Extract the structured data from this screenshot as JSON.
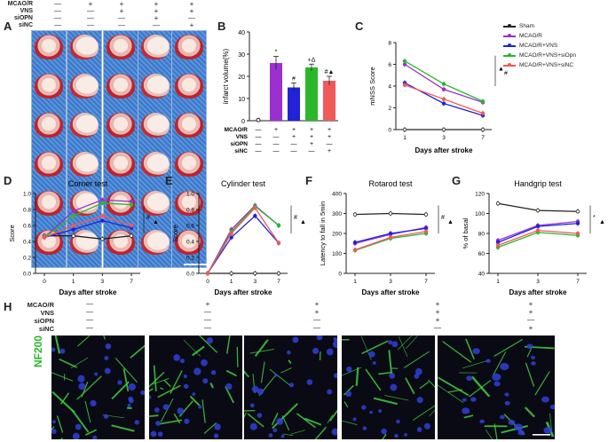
{
  "panels": {
    "A": "A",
    "B": "B",
    "C": "C",
    "D": "D",
    "E": "E",
    "F": "F",
    "G": "G",
    "H": "H"
  },
  "conditions": {
    "labels": [
      "MCAO/R",
      "VNS",
      "siOPN",
      "siNC"
    ],
    "A_signs": [
      [
        "—",
        "+",
        "+",
        "+",
        "+"
      ],
      [
        "—",
        "—",
        "+",
        "+",
        "+"
      ],
      [
        "—",
        "—",
        "—",
        "+",
        "—"
      ],
      [
        "—",
        "—",
        "—",
        "—",
        "+"
      ]
    ],
    "H_signs": [
      [
        "—",
        "+",
        "+",
        "+",
        "+"
      ],
      [
        "—",
        "—",
        "+",
        "+",
        "+"
      ],
      [
        "—",
        "—",
        "—",
        "+",
        "—"
      ],
      [
        "—",
        "—",
        "—",
        "—",
        "+"
      ]
    ]
  },
  "legend": [
    "Sham",
    "MCAO/R",
    "MCAO/R+VNS",
    "MCAO/R+VNS+siOpn",
    "MCAO/R+VNS+siNC"
  ],
  "colors": {
    "sham": "#222222",
    "mcao": "#9b2fd0",
    "vns": "#2222d8",
    "siopn": "#2ab82a",
    "sinc": "#f05a5a"
  },
  "nf200_label": "NF200",
  "chart_data": [
    {
      "id": "B",
      "type": "bar",
      "ylabel": "infarct volume(%)",
      "ylim": [
        0,
        40
      ],
      "yticks": [
        "0",
        "10",
        "20",
        "30",
        "40"
      ],
      "categories": [
        "Sham",
        "MCAO/R",
        "MCAO/R+VNS",
        "MCAO/R+VNS+siOPN",
        "MCAO/R+VNS+siNC"
      ],
      "values": [
        0.5,
        26,
        15,
        24,
        18
      ],
      "errors": [
        0.5,
        3,
        2,
        1.5,
        2
      ],
      "annotations": [
        "",
        "*",
        "#",
        "+Δ",
        "#▲"
      ],
      "xsigns_labels": [
        "MCAO/R",
        "VNS",
        "siOPN",
        "siNC"
      ],
      "xsigns": [
        [
          "—",
          "+",
          "+",
          "+",
          "+"
        ],
        [
          "—",
          "—",
          "+",
          "+",
          "+"
        ],
        [
          "—",
          "—",
          "—",
          "+",
          "—"
        ],
        [
          "—",
          "—",
          "—",
          "—",
          "+"
        ]
      ]
    },
    {
      "id": "C",
      "type": "line",
      "xlabel": "Days after stroke",
      "ylabel": "mNSS Score",
      "x": [
        "1",
        "3",
        "7"
      ],
      "ylim": [
        0,
        8
      ],
      "yticks": [
        "0",
        "2",
        "4",
        "6",
        "8"
      ],
      "series": [
        {
          "name": "Sham",
          "values": [
            0,
            0,
            0
          ]
        },
        {
          "name": "MCAO/R",
          "values": [
            6,
            3.7,
            2.5
          ]
        },
        {
          "name": "MCAO/R+VNS",
          "values": [
            4.3,
            2.4,
            1.3
          ]
        },
        {
          "name": "MCAO/R+VNS+siOpn",
          "values": [
            6.3,
            4.2,
            2.6
          ]
        },
        {
          "name": "MCAO/R+VNS+siNC",
          "values": [
            4.1,
            2.8,
            1.5
          ]
        }
      ],
      "sig": [
        "▲",
        "#"
      ]
    },
    {
      "id": "D",
      "type": "line",
      "title": "Corner test",
      "xlabel": "Days after stroke",
      "ylabel": "Score",
      "x": [
        "0",
        "1",
        "3",
        "7"
      ],
      "ylim": [
        0,
        1.0
      ],
      "yticks": [
        "0.0",
        "0.2",
        "0.4",
        "0.6",
        "0.8",
        "1.0"
      ],
      "series": [
        {
          "name": "Sham",
          "values": [
            0.47,
            0.47,
            0.43,
            0.47
          ]
        },
        {
          "name": "MCAO/R",
          "values": [
            0.45,
            0.78,
            0.92,
            0.9
          ]
        },
        {
          "name": "MCAO/R+VNS",
          "values": [
            0.45,
            0.55,
            0.66,
            0.57
          ]
        },
        {
          "name": "MCAO/R+VNS+siOpn",
          "values": [
            0.45,
            0.72,
            0.88,
            0.86
          ]
        },
        {
          "name": "MCAO/R+VNS+siNC",
          "values": [
            0.45,
            0.6,
            0.72,
            0.6
          ]
        }
      ],
      "sig": [
        "#",
        "▲"
      ]
    },
    {
      "id": "E",
      "type": "line",
      "title": "Cylinder test",
      "xlabel": "Days after stroke",
      "ylabel": "Score",
      "x": [
        "0",
        "1",
        "3",
        "7"
      ],
      "ylim": [
        0,
        1.0
      ],
      "yticks": [
        "0.0",
        "0.2",
        "0.4",
        "0.6",
        "0.8",
        "1.0"
      ],
      "series": [
        {
          "name": "Sham",
          "values": [
            0,
            0,
            0,
            0
          ]
        },
        {
          "name": "MCAO/R",
          "values": [
            0,
            0.55,
            0.85,
            0.6
          ]
        },
        {
          "name": "MCAO/R+VNS",
          "values": [
            0,
            0.45,
            0.72,
            0.38
          ]
        },
        {
          "name": "MCAO/R+VNS+siOpn",
          "values": [
            0,
            0.52,
            0.84,
            0.6
          ]
        },
        {
          "name": "MCAO/R+VNS+siNC",
          "values": [
            0,
            0.5,
            0.82,
            0.38
          ]
        }
      ],
      "sig": [
        "#",
        "▲"
      ]
    },
    {
      "id": "F",
      "type": "line",
      "title": "Rotarod test",
      "xlabel": "Days after stroke",
      "ylabel": "Latency to fall in 5min",
      "x": [
        "1",
        "3",
        "7"
      ],
      "ylim": [
        0,
        400
      ],
      "yticks": [
        "0",
        "100",
        "200",
        "300",
        "400"
      ],
      "series": [
        {
          "name": "Sham",
          "values": [
            295,
            300,
            295
          ]
        },
        {
          "name": "MCAO/R",
          "values": [
            150,
            195,
            230
          ]
        },
        {
          "name": "MCAO/R+VNS",
          "values": [
            155,
            200,
            225
          ]
        },
        {
          "name": "MCAO/R+VNS+siOpn",
          "values": [
            115,
            175,
            200
          ]
        },
        {
          "name": "MCAO/R+VNS+siNC",
          "values": [
            118,
            180,
            210
          ]
        }
      ],
      "sig": [
        "#",
        "▲"
      ]
    },
    {
      "id": "G",
      "type": "line",
      "title": "Handgrip test",
      "xlabel": "Days after stroke",
      "ylabel": "% of basal",
      "x": [
        "1",
        "3",
        "7"
      ],
      "ylim": [
        40,
        120
      ],
      "yticks": [
        "40",
        "60",
        "80",
        "100",
        "120"
      ],
      "series": [
        {
          "name": "Sham",
          "values": [
            110,
            103,
            102
          ]
        },
        {
          "name": "MCAO/R",
          "values": [
            73,
            88,
            92
          ]
        },
        {
          "name": "MCAO/R+VNS",
          "values": [
            71,
            87,
            90
          ]
        },
        {
          "name": "MCAO/R+VNS+siOpn",
          "values": [
            66,
            81,
            78
          ]
        },
        {
          "name": "MCAO/R+VNS+siNC",
          "values": [
            68,
            83,
            80
          ]
        }
      ],
      "sig": [
        "*",
        "▲"
      ]
    }
  ]
}
